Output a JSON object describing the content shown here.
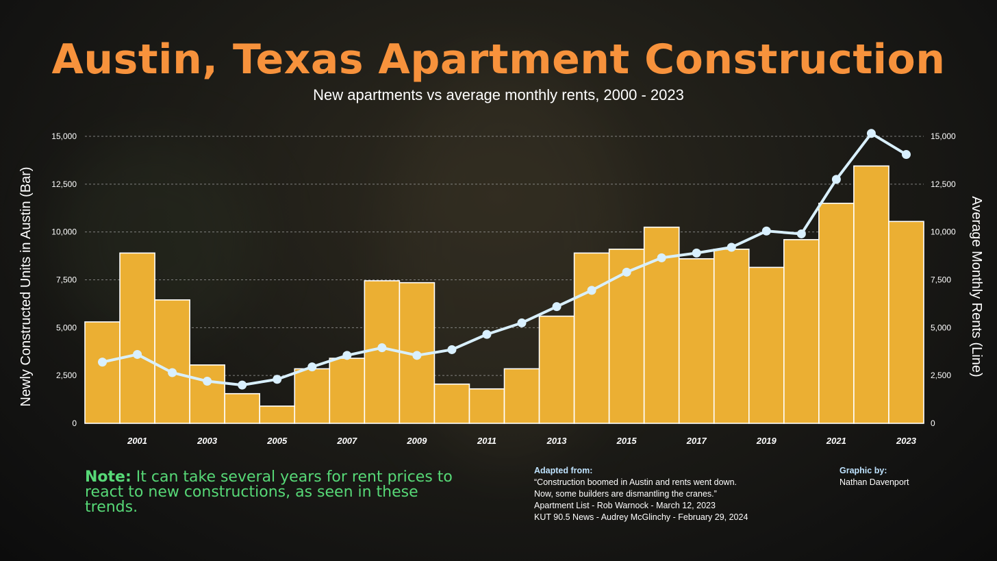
{
  "title": "Austin, Texas Apartment Construction",
  "subtitle": "New apartments vs average monthly rents, 2000 - 2023",
  "chart_data": {
    "type": "bar",
    "years": [
      2000,
      2001,
      2002,
      2003,
      2004,
      2005,
      2006,
      2007,
      2008,
      2009,
      2010,
      2011,
      2012,
      2013,
      2014,
      2015,
      2016,
      2017,
      2018,
      2019,
      2020,
      2021,
      2022,
      2023
    ],
    "x_tick_labels": [
      "2001",
      "2003",
      "2005",
      "2007",
      "2009",
      "2011",
      "2013",
      "2015",
      "2017",
      "2019",
      "2021",
      "2023"
    ],
    "series": [
      {
        "name": "Bar",
        "type": "bar",
        "values": [
          5300,
          8900,
          6450,
          3050,
          1550,
          900,
          2850,
          3400,
          7450,
          7350,
          2050,
          1800,
          2850,
          5600,
          8900,
          9100,
          10250,
          8600,
          9100,
          8150,
          9600,
          11500,
          13450,
          10550
        ]
      },
      {
        "name": "Line",
        "type": "line",
        "values": [
          3200,
          3600,
          2650,
          2200,
          2000,
          2300,
          2950,
          3550,
          3950,
          3550,
          3850,
          4650,
          5250,
          6100,
          6950,
          7900,
          8650,
          8900,
          9200,
          10050,
          9900,
          12750,
          15150,
          14050
        ]
      }
    ],
    "ylabel_left": "Newly Constructed Units in Austin (Bar)",
    "ylabel_right": "Average Monthly Rents (Line)",
    "y_tick_labels": [
      "0",
      "2,500",
      "5,000",
      "7,500",
      "10,000",
      "12,500",
      "15,000"
    ],
    "ylim": [
      0,
      15000
    ],
    "grid": true,
    "colors": {
      "bar": "#ebaf33",
      "bar_stroke": "#ffffff",
      "line": "#d9f0ff",
      "grid": "#9a9a9a",
      "title": "#f7923c",
      "note": "#57d977"
    }
  },
  "note": {
    "label": "Note:",
    "text": " It can take several years for rent prices to react to new constructions, as seen in these trends."
  },
  "source": {
    "heading": "Adapted from:",
    "lines": [
      "“Construction boomed in Austin and rents went down.",
      "Now, some builders are dismantling the cranes.”",
      "Apartment List - Rob Warnock - March 12, 2023",
      "KUT 90.5 News - Audrey McGlinchy - February 29, 2024"
    ]
  },
  "credit": {
    "heading": "Graphic by:",
    "name": "Nathan Davenport"
  }
}
